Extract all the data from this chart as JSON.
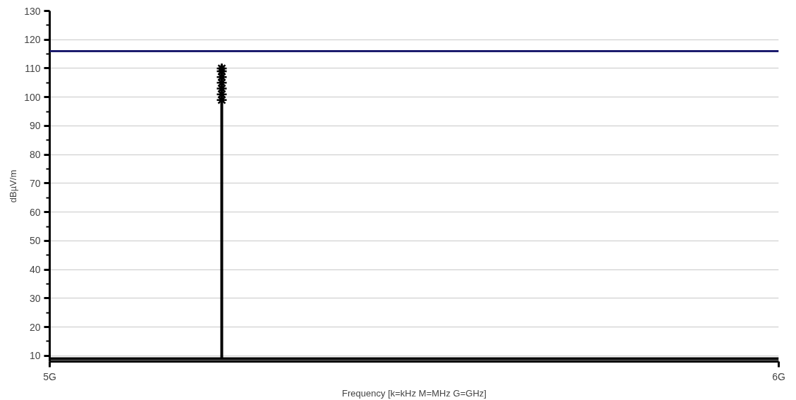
{
  "chart_data": {
    "type": "line",
    "xlabel": "Frequency [k=kHz M=MHz G=GHz]",
    "ylabel": "dBµV/m",
    "series": [
      {
        "color": "#000000",
        "x": [
          5,
          5.236,
          5.236,
          5.236,
          6
        ],
        "values": [
          9,
          9,
          111,
          9,
          9
        ]
      },
      {
        "type": "scatter",
        "color": "#000000",
        "marker": "cross",
        "x": [
          5.236,
          5.236,
          5.236,
          5.236,
          5.236,
          5.236,
          5.236
        ],
        "values": [
          110,
          109,
          107,
          105,
          103,
          101,
          99
        ]
      }
    ],
    "ref_lines": [
      {
        "axis": "y",
        "value": 116,
        "color": "#1c1c6e"
      }
    ],
    "xlim": [
      5,
      6
    ],
    "xticks": [
      {
        "value": 5,
        "label": "5G"
      },
      {
        "value": 6,
        "label": "6G"
      }
    ],
    "ylim": [
      8,
      130
    ],
    "yticks": [
      10,
      20,
      30,
      40,
      50,
      60,
      70,
      80,
      90,
      100,
      110,
      120,
      130
    ],
    "grid": "y"
  }
}
